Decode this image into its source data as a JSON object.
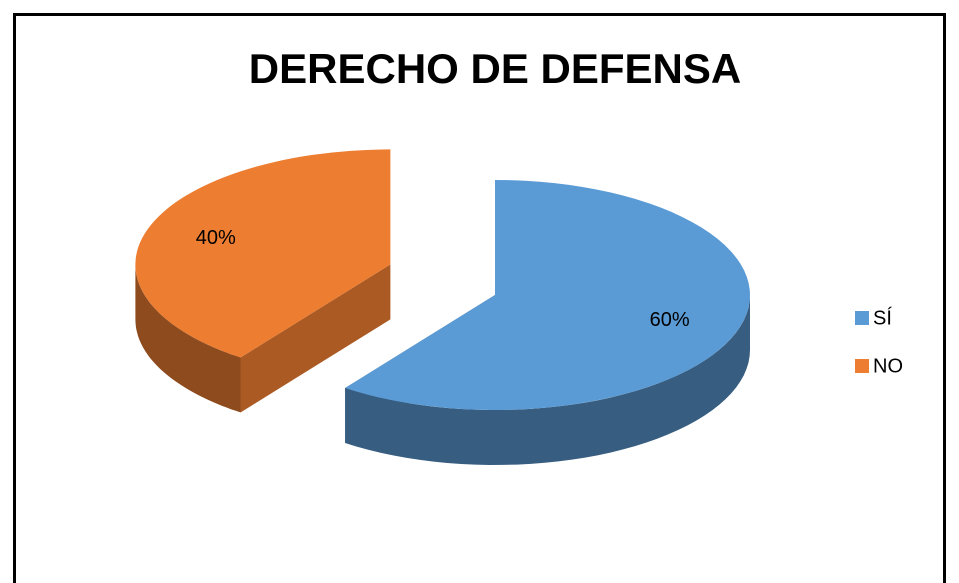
{
  "chart_data": {
    "type": "pie",
    "title": "DERECHO DE DEFENSA",
    "categories": [
      "SÍ",
      "NO"
    ],
    "values": [
      60,
      40
    ],
    "value_labels": [
      "60%",
      "40%"
    ],
    "colors": [
      "#5b9bd5",
      "#ed7d31"
    ],
    "legend": "right"
  }
}
